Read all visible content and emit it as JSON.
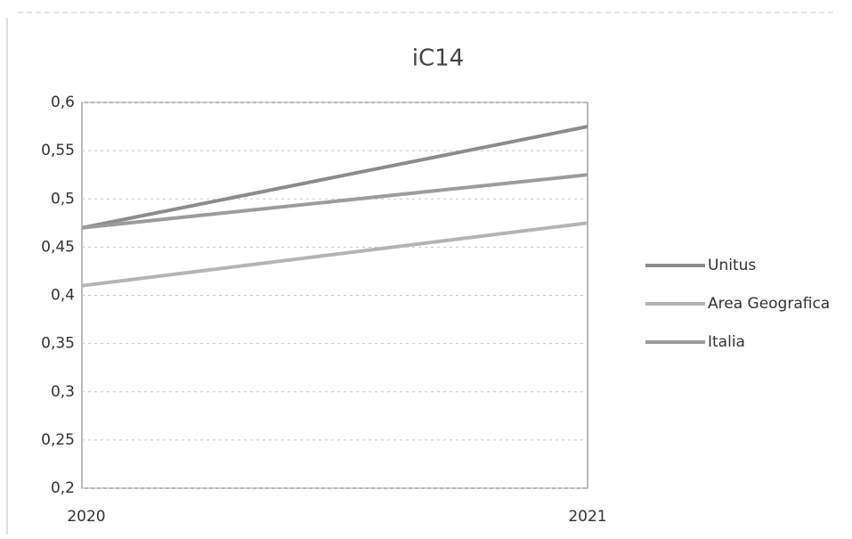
{
  "chart_data": {
    "type": "line",
    "title": "iC14",
    "categories": [
      "2020",
      "2021"
    ],
    "series": [
      {
        "name": "Unitus",
        "color": "#8c8c8c",
        "values": [
          0.47,
          0.575
        ]
      },
      {
        "name": "Area Geografica",
        "color": "#b4b4b4",
        "values": [
          0.41,
          0.475
        ]
      },
      {
        "name": "Italia",
        "color": "#9c9c9c",
        "values": [
          0.47,
          0.525
        ]
      }
    ],
    "ylim": [
      0.2,
      0.6
    ],
    "yticks": [
      {
        "value": 0.2,
        "label": "0,2"
      },
      {
        "value": 0.25,
        "label": "0,25"
      },
      {
        "value": 0.3,
        "label": "0,3"
      },
      {
        "value": 0.35,
        "label": "0,35"
      },
      {
        "value": 0.4,
        "label": "0,4"
      },
      {
        "value": 0.45,
        "label": "0,45"
      },
      {
        "value": 0.5,
        "label": "0,5"
      },
      {
        "value": 0.55,
        "label": "0,55"
      },
      {
        "value": 0.6,
        "label": "0,6"
      }
    ],
    "grid": true,
    "legend": "right"
  }
}
